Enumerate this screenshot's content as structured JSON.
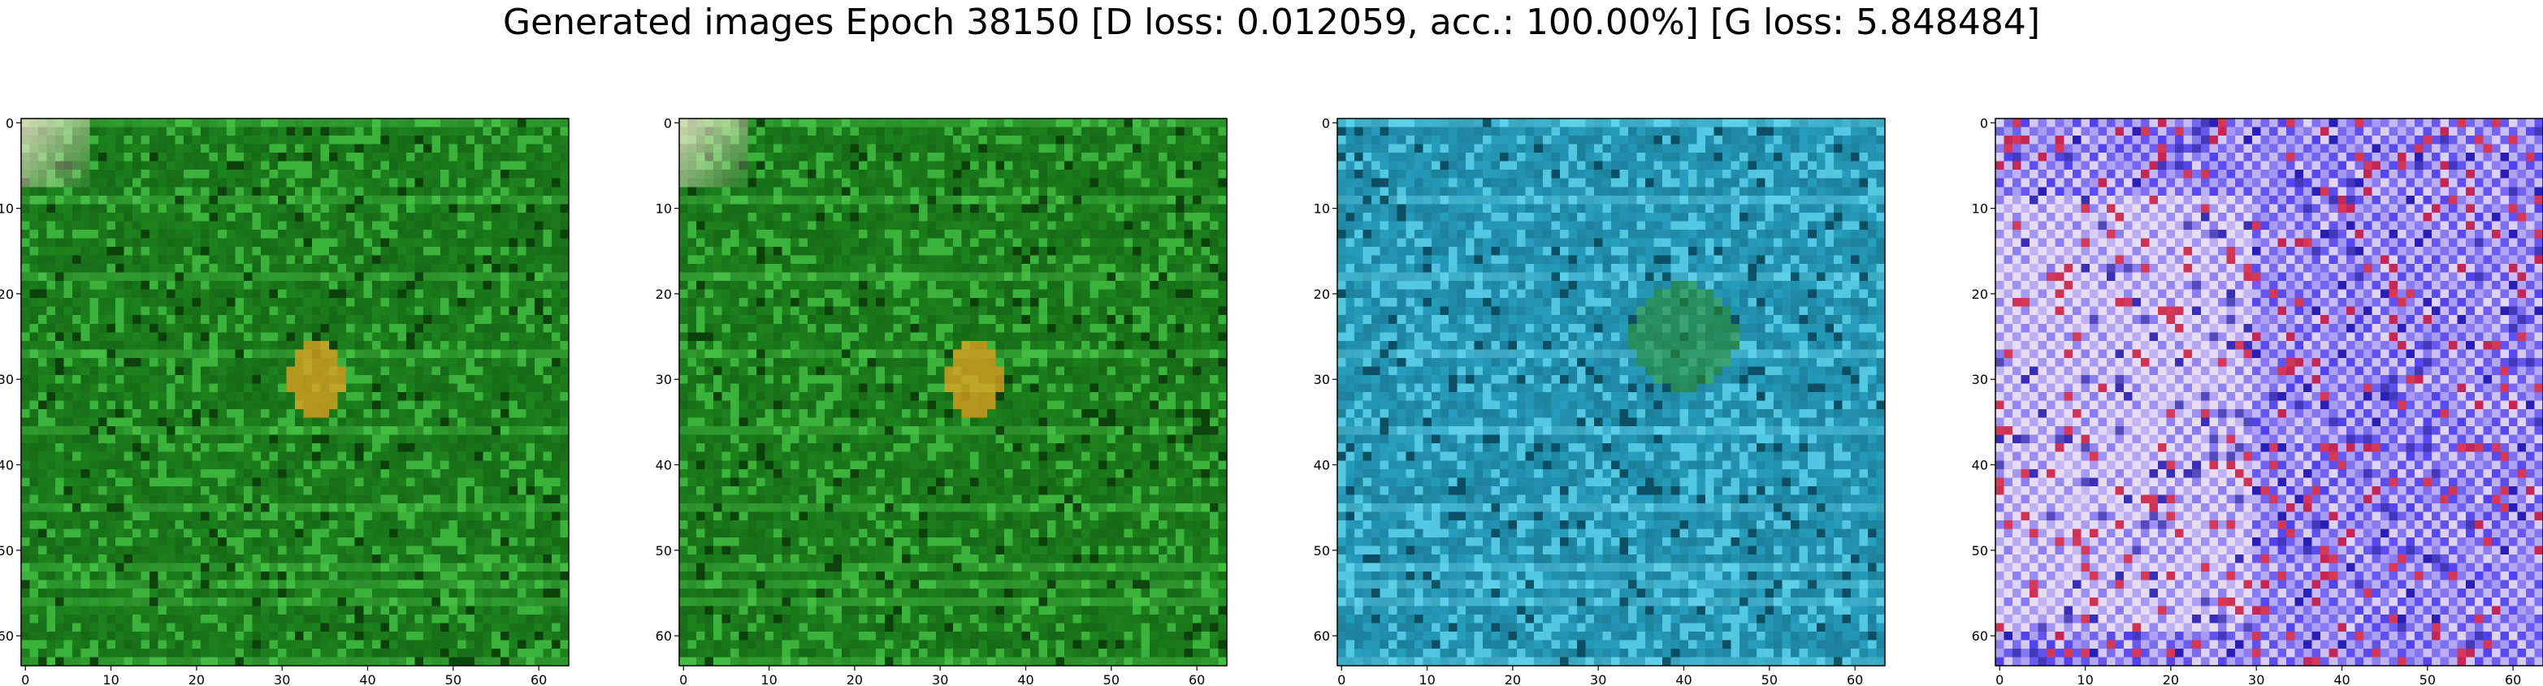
{
  "title": "Generated images Epoch 38150 [D loss: 0.012059, acc.: 100.00%] [G loss: 5.848484]",
  "chart_data": [
    {
      "type": "heatmap",
      "content": "generated image (green texture)",
      "x_ticks": [
        "0",
        "10",
        "20",
        "30",
        "40",
        "50",
        "60"
      ],
      "y_ticks": [
        "0",
        "10",
        "20",
        "30",
        "40",
        "50",
        "60"
      ],
      "xlim": [
        -0.5,
        63.5
      ],
      "ylim": [
        63.5,
        -0.5
      ],
      "palette": {
        "base": "#1f8a1f",
        "dark": "#0b3d0b",
        "light": "#4fd04f",
        "accent": "#e8a020"
      }
    },
    {
      "type": "heatmap",
      "content": "generated image (green texture)",
      "x_ticks": [
        "0",
        "10",
        "20",
        "30",
        "40",
        "50",
        "60"
      ],
      "y_ticks": [
        "0",
        "10",
        "20",
        "30",
        "40",
        "50",
        "60"
      ],
      "xlim": [
        -0.5,
        63.5
      ],
      "ylim": [
        63.5,
        -0.5
      ],
      "palette": {
        "base": "#1f8a1f",
        "dark": "#0b3d0b",
        "light": "#4fd04f",
        "accent": "#e8a020"
      }
    },
    {
      "type": "heatmap",
      "content": "generated image (cyan/teal texture)",
      "x_ticks": [
        "0",
        "10",
        "20",
        "30",
        "40",
        "50",
        "60"
      ],
      "y_ticks": [
        "0",
        "10",
        "20",
        "30",
        "40",
        "50",
        "60"
      ],
      "xlim": [
        -0.5,
        63.5
      ],
      "ylim": [
        63.5,
        -0.5
      ],
      "palette": {
        "base": "#2aa7c8",
        "dark": "#0a4a5e",
        "light": "#6fe0f5",
        "accent": "#2a8a2a"
      }
    },
    {
      "type": "heatmap",
      "content": "generated image (blue/violet checker texture)",
      "x_ticks": [
        "0",
        "10",
        "20",
        "30",
        "40",
        "50",
        "60"
      ],
      "y_ticks": [
        "0",
        "10",
        "20",
        "30",
        "40",
        "50",
        "60"
      ],
      "xlim": [
        -0.5,
        63.5
      ],
      "ylim": [
        63.5,
        -0.5
      ],
      "palette": {
        "base": "#4b3cf0",
        "dark": "#1a10a0",
        "light": "#e8dcf5",
        "accent": "#d01030"
      }
    }
  ]
}
